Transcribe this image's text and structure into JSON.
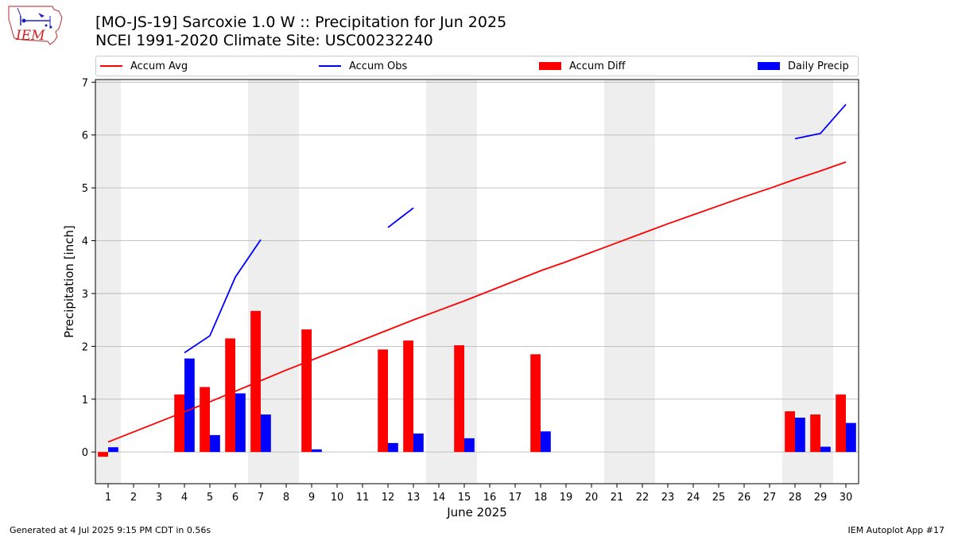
{
  "header": {
    "title_line1": "[MO-JS-19] Sarcoxie 1.0 W :: Precipitation for Jun 2025",
    "title_line2": "NCEI 1991-2020 Climate Site: USC00232240",
    "logo_text": "IEM"
  },
  "footer": {
    "generated": "Generated at 4 Jul 2025 9:15 PM CDT in 0.56s",
    "app": "IEM Autoplot App #17"
  },
  "colors": {
    "accum_avg": "#ff0000",
    "accum_obs": "#0000ff",
    "accum_diff": "#ff0000",
    "daily_precip": "#0000ff",
    "weekend_shading": "#eeeeee",
    "grid": "#b0b0b0"
  },
  "chart_data": {
    "type": "bar",
    "xlabel": "June 2025",
    "ylabel": "Precipitation [inch]",
    "xlim": [
      0.5,
      30.5
    ],
    "ylim": [
      -0.6,
      7.05
    ],
    "yticks": [
      0,
      1,
      2,
      3,
      4,
      5,
      6,
      7
    ],
    "grid": "horizontal",
    "legend_position": "top",
    "days": [
      1,
      2,
      3,
      4,
      5,
      6,
      7,
      8,
      9,
      10,
      11,
      12,
      13,
      14,
      15,
      16,
      17,
      18,
      19,
      20,
      21,
      22,
      23,
      24,
      25,
      26,
      27,
      28,
      29,
      30
    ],
    "shaded_day_ranges": [
      [
        0.5,
        1.5
      ],
      [
        6.5,
        8.5
      ],
      [
        13.5,
        15.5
      ],
      [
        20.5,
        22.5
      ],
      [
        27.5,
        29.5
      ]
    ],
    "series": [
      {
        "name": "Accum Avg",
        "kind": "line",
        "values": [
          0.19,
          0.38,
          0.57,
          0.76,
          0.95,
          1.15,
          1.35,
          1.55,
          1.74,
          1.93,
          2.12,
          2.31,
          2.5,
          2.68,
          2.86,
          3.05,
          3.24,
          3.43,
          3.6,
          3.78,
          3.96,
          4.14,
          4.32,
          4.49,
          4.66,
          4.83,
          4.99,
          5.16,
          5.32,
          5.49
        ]
      },
      {
        "name": "Accum Obs",
        "kind": "line",
        "values": [
          null,
          null,
          null,
          1.88,
          2.2,
          3.31,
          4.02,
          null,
          null,
          null,
          null,
          4.25,
          4.62,
          null,
          null,
          null,
          null,
          null,
          null,
          null,
          null,
          null,
          null,
          null,
          null,
          null,
          null,
          5.93,
          6.03,
          6.58
        ]
      },
      {
        "name": "Accum Diff",
        "kind": "bar",
        "values": [
          -0.09,
          0,
          0,
          1.09,
          1.23,
          2.15,
          2.67,
          0,
          2.32,
          0,
          0,
          1.94,
          2.11,
          0,
          2.02,
          0,
          0,
          1.85,
          0,
          0,
          0,
          0,
          0,
          0,
          0,
          0,
          0,
          0.77,
          0.71,
          1.09
        ]
      },
      {
        "name": "Daily Precip",
        "kind": "bar",
        "values": [
          0.09,
          0,
          0,
          1.77,
          0.32,
          1.11,
          0.71,
          0,
          0.05,
          0,
          0,
          0.17,
          0.35,
          0,
          0.26,
          0,
          0,
          0.39,
          0,
          0,
          0,
          0,
          0,
          0,
          0,
          0,
          0,
          0.65,
          0.1,
          0.55
        ]
      }
    ]
  }
}
